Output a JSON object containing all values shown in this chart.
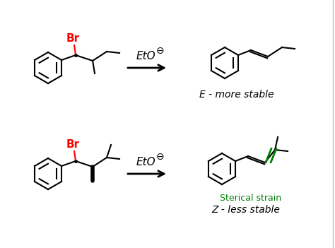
{
  "bg_color": "#ffffff",
  "black": "#000000",
  "red": "#ff0000",
  "green": "#008000",
  "label_E": "E - more stable",
  "label_Z": "Z - less stable",
  "label_strain": "Sterical strain",
  "minus_symbol": "⊖",
  "fig_width": 4.74,
  "fig_height": 3.51,
  "dpi": 100
}
